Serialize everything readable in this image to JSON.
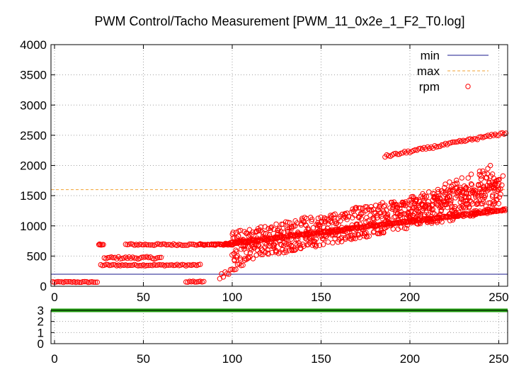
{
  "chart_data": [
    {
      "type": "scatter",
      "title": "PWM Control/Tacho Measurement [PWM_11_0x2e_1_F2_T0.log]",
      "xlabel": "",
      "ylabel": "",
      "xlim": [
        -2,
        255
      ],
      "ylim": [
        0,
        4000
      ],
      "x_ticks": [
        0,
        50,
        100,
        150,
        200,
        250
      ],
      "y_ticks": [
        0,
        500,
        1000,
        1500,
        2000,
        2500,
        3000,
        3500,
        4000
      ],
      "grid": true,
      "legend_position": "top-right",
      "series": [
        {
          "name": "min",
          "kind": "hline",
          "value": 200,
          "color": "#1a1a8c"
        },
        {
          "name": "max",
          "kind": "hline",
          "value": 1600,
          "color": "#f0a030"
        },
        {
          "name": "rpm",
          "kind": "points",
          "color": "#ff0000",
          "segments": [
            {
              "x_range": [
                -1,
                24
              ],
              "y_base": 70,
              "y_jitter": 8,
              "density": 1
            },
            {
              "x_range": [
                25,
                27
              ],
              "y_base": 690,
              "y_jitter": 10,
              "density": 2
            },
            {
              "x_range": [
                26,
                82
              ],
              "y_base": 350,
              "y_jitter": 12,
              "density": 1
            },
            {
              "x_range": [
                28,
                60
              ],
              "y_base": 470,
              "y_jitter": 20,
              "density": 1
            },
            {
              "x_range": [
                40,
                82
              ],
              "y_base": 690,
              "y_jitter": 15,
              "density": 1
            },
            {
              "x_range": [
                74,
                84
              ],
              "y_base": 75,
              "y_jitter": 8,
              "density": 1
            },
            {
              "x_range": [
                82,
                100
              ],
              "y_base": 690,
              "y_jitter": 10,
              "density": 2
            },
            {
              "x_range": [
                96,
                254
              ],
              "y_start": 700,
              "y_end": 1270,
              "y_jitter": 15,
              "density": 2
            },
            {
              "x_range": [
                100,
                250
              ],
              "y_start": 650,
              "y_end": 1500,
              "y_jitter": 260,
              "density": 5
            },
            {
              "x_range": [
                186,
                254
              ],
              "y_start": 2150,
              "y_end": 2540,
              "y_jitter": 20,
              "density": 1
            },
            {
              "x_range": [
                200,
                252
              ],
              "y_start": 1200,
              "y_end": 1800,
              "y_jitter": 280,
              "density": 2
            },
            {
              "x_range": [
                93,
                110
              ],
              "y_start": 150,
              "y_end": 450,
              "y_jitter": 40,
              "density": 1
            }
          ]
        }
      ]
    },
    {
      "type": "line",
      "title": "",
      "xlabel": "",
      "ylabel": "",
      "xlim": [
        -2,
        255
      ],
      "ylim": [
        0,
        3
      ],
      "x_ticks": [
        0,
        50,
        100,
        150,
        200,
        250
      ],
      "y_ticks": [
        0,
        1,
        2,
        3
      ],
      "grid": true,
      "series": [
        {
          "name": "",
          "x": [
            -2,
            255
          ],
          "values": [
            3,
            3
          ],
          "color": "#22a010"
        }
      ]
    }
  ]
}
